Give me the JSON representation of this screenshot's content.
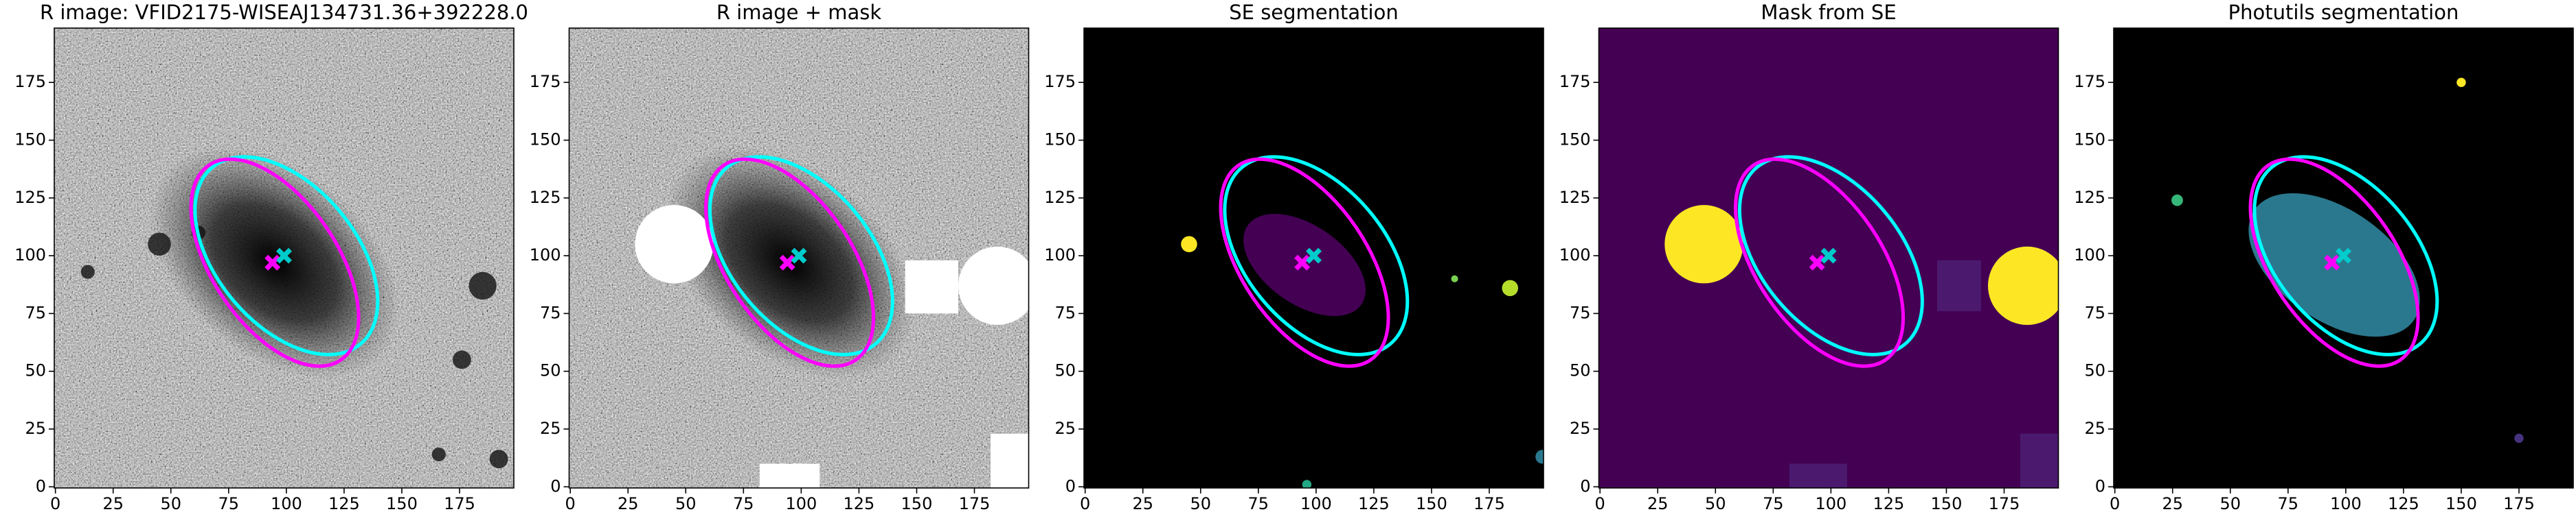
{
  "chart_data": [
    {
      "type": "image",
      "title": "R image: VFID2175-WISEAJ134731.36+392228.0",
      "xlim": [
        -0.5,
        198.5
      ],
      "ylim": [
        -0.5,
        198.5
      ],
      "xticks": [
        0,
        25,
        50,
        75,
        100,
        125,
        150,
        175
      ],
      "yticks": [
        0,
        25,
        50,
        75,
        100,
        125,
        150,
        175
      ],
      "ellipses": [
        {
          "cx": 100,
          "cy": 100,
          "a": 50,
          "b": 30,
          "theta": -50,
          "color": "#00ffff"
        },
        {
          "cx": 95,
          "cy": 97,
          "a": 51,
          "b": 27,
          "theta": -56,
          "color": "#ff00ff"
        }
      ],
      "markers": [
        {
          "x": 94,
          "y": 97,
          "color": "#ff00ff"
        },
        {
          "x": 99,
          "y": 100,
          "color": "#00cccc"
        }
      ]
    },
    {
      "type": "image",
      "title": "R image + mask",
      "xlim": [
        -0.5,
        198.5
      ],
      "ylim": [
        -0.5,
        198.5
      ],
      "xticks": [
        0,
        25,
        50,
        75,
        100,
        125,
        150,
        175
      ],
      "yticks": [
        0,
        25,
        50,
        75,
        100,
        125,
        150,
        175
      ],
      "ellipses": [
        {
          "cx": 100,
          "cy": 100,
          "a": 50,
          "b": 30,
          "theta": -50,
          "color": "#00ffff"
        },
        {
          "cx": 95,
          "cy": 97,
          "a": 51,
          "b": 27,
          "theta": -56,
          "color": "#ff00ff"
        }
      ],
      "markers": [
        {
          "x": 94,
          "y": 97,
          "color": "#ff00ff"
        },
        {
          "x": 99,
          "y": 100,
          "color": "#00cccc"
        }
      ]
    },
    {
      "type": "image",
      "title": "SE segmentation",
      "xlim": [
        -0.5,
        198.5
      ],
      "ylim": [
        -0.5,
        198.5
      ],
      "xticks": [
        0,
        25,
        50,
        75,
        100,
        125,
        150,
        175
      ],
      "yticks": [
        0,
        25,
        50,
        75,
        100,
        125,
        150,
        175
      ],
      "ellipses": [
        {
          "cx": 100,
          "cy": 100,
          "a": 50,
          "b": 30,
          "theta": -50,
          "color": "#00ffff"
        },
        {
          "cx": 95,
          "cy": 97,
          "a": 51,
          "b": 27,
          "theta": -56,
          "color": "#ff00ff"
        }
      ],
      "markers": [
        {
          "x": 94,
          "y": 97,
          "color": "#ff00ff"
        },
        {
          "x": 99,
          "y": 100,
          "color": "#00cccc"
        }
      ]
    },
    {
      "type": "image",
      "title": "Mask from SE",
      "xlim": [
        -0.5,
        198.5
      ],
      "ylim": [
        -0.5,
        198.5
      ],
      "xticks": [
        0,
        25,
        50,
        75,
        100,
        125,
        150,
        175
      ],
      "yticks": [
        0,
        25,
        50,
        75,
        100,
        125,
        150,
        175
      ],
      "ellipses": [
        {
          "cx": 100,
          "cy": 100,
          "a": 50,
          "b": 30,
          "theta": -50,
          "color": "#00ffff"
        },
        {
          "cx": 95,
          "cy": 97,
          "a": 51,
          "b": 27,
          "theta": -56,
          "color": "#ff00ff"
        }
      ],
      "markers": [
        {
          "x": 94,
          "y": 97,
          "color": "#ff00ff"
        },
        {
          "x": 99,
          "y": 100,
          "color": "#00cccc"
        }
      ]
    },
    {
      "type": "image",
      "title": "Photutils segmentation",
      "xlim": [
        -0.5,
        198.5
      ],
      "ylim": [
        -0.5,
        198.5
      ],
      "xticks": [
        0,
        25,
        50,
        75,
        100,
        125,
        150,
        175
      ],
      "yticks": [
        0,
        25,
        50,
        75,
        100,
        125,
        150,
        175
      ],
      "ellipses": [
        {
          "cx": 100,
          "cy": 100,
          "a": 50,
          "b": 30,
          "theta": -50,
          "color": "#00ffff"
        },
        {
          "cx": 95,
          "cy": 97,
          "a": 51,
          "b": 27,
          "theta": -56,
          "color": "#ff00ff"
        }
      ],
      "markers": [
        {
          "x": 94,
          "y": 97,
          "color": "#ff00ff"
        },
        {
          "x": 99,
          "y": 100,
          "color": "#00cccc"
        }
      ]
    }
  ]
}
